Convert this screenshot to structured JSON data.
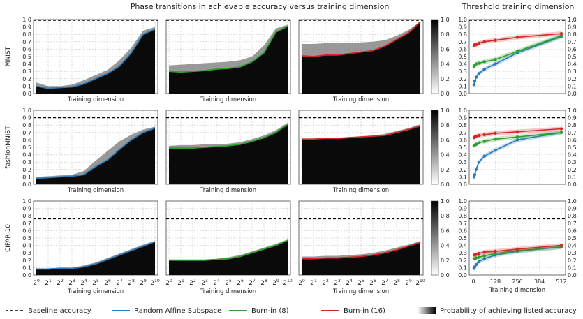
{
  "titles": {
    "left": "Phase transitions in achievable accuracy versus training dimension",
    "right": "Threshold training dimension"
  },
  "row_labels": [
    "MNIST",
    "fashionMNIST",
    "CIFAR-10"
  ],
  "xlabel": "Training dimension",
  "legend": [
    {
      "label": "Baseline accuracy",
      "kind": "dash",
      "color": "#000000"
    },
    {
      "label": "Random Affine Subspace",
      "kind": "line",
      "color": "#2b7bba"
    },
    {
      "label": "Burn-in (8)",
      "kind": "line",
      "color": "#2ca02c"
    },
    {
      "label": "Burn-in (16)",
      "kind": "line",
      "color": "#d62728"
    },
    {
      "label": "Probability of achieving listed accuracy",
      "kind": "gradient",
      "color": "#000000"
    }
  ],
  "chart_data": {
    "type": "line",
    "x_exponents": [
      0,
      1,
      2,
      3,
      4,
      5,
      6,
      7,
      8,
      9,
      10
    ],
    "x_tick_labels": [
      "2",
      "2",
      "2",
      "2",
      "2",
      "2",
      "2",
      "2",
      "2",
      "2",
      "2"
    ],
    "x_tick_sup": [
      "0",
      "1",
      "2",
      "3",
      "4",
      "5",
      "6",
      "7",
      "8",
      "9",
      "10"
    ],
    "y_ticks": [
      "0.0",
      "0.1",
      "0.2",
      "0.3",
      "0.4",
      "0.5",
      "0.6",
      "0.7",
      "0.8",
      "0.9",
      "1.0"
    ],
    "colorbar_ticks": [
      "0.0",
      "0.2",
      "0.4",
      "0.6",
      "0.8",
      "1.0"
    ],
    "right_x_ticks": [
      "0",
      "128",
      "256",
      "384",
      "512"
    ],
    "ylim": [
      0,
      1
    ],
    "rows": [
      {
        "dataset": "MNIST",
        "baseline": 0.99,
        "panels": [
          {
            "method": "Random Affine Subspace",
            "color": "#2b7bba",
            "curve": [
              0.1,
              0.07,
              0.08,
              0.09,
              0.13,
              0.2,
              0.27,
              0.37,
              0.55,
              0.8,
              0.87
            ],
            "band": [
              0.15,
              0.1,
              0.1,
              0.12,
              0.18,
              0.25,
              0.32,
              0.45,
              0.62,
              0.85,
              0.9
            ]
          },
          {
            "method": "Burn-in (8)",
            "color": "#2ca02c",
            "curve": [
              0.3,
              0.29,
              0.3,
              0.31,
              0.33,
              0.34,
              0.36,
              0.43,
              0.55,
              0.83,
              0.91
            ],
            "band": [
              0.38,
              0.39,
              0.4,
              0.41,
              0.42,
              0.43,
              0.45,
              0.5,
              0.65,
              0.88,
              0.93
            ]
          },
          {
            "method": "Burn-in (16)",
            "color": "#d62728",
            "curve": [
              0.51,
              0.5,
              0.52,
              0.52,
              0.54,
              0.56,
              0.58,
              0.64,
              0.73,
              0.82,
              0.97
            ],
            "band": [
              0.67,
              0.67,
              0.68,
              0.68,
              0.68,
              0.69,
              0.7,
              0.72,
              0.78,
              0.86,
              0.97
            ]
          }
        ],
        "threshold": [
          {
            "name": "Random Affine Subspace",
            "color": "#2b7bba",
            "x": [
              4,
              8,
              16,
              32,
              64,
              128,
              256,
              512
            ],
            "y": [
              0.12,
              0.17,
              0.22,
              0.27,
              0.33,
              0.4,
              0.55,
              0.77
            ]
          },
          {
            "name": "Burn-in (8)",
            "color": "#2ca02c",
            "x": [
              4,
              8,
              16,
              32,
              64,
              128,
              256,
              512
            ],
            "y": [
              0.36,
              0.38,
              0.4,
              0.41,
              0.43,
              0.46,
              0.57,
              0.78
            ]
          },
          {
            "name": "Burn-in (16)",
            "color": "#d62728",
            "x": [
              4,
              8,
              16,
              32,
              64,
              128,
              256,
              512
            ],
            "y": [
              0.65,
              0.66,
              0.66,
              0.68,
              0.7,
              0.72,
              0.76,
              0.81
            ]
          }
        ]
      },
      {
        "dataset": "fashionMNIST",
        "baseline": 0.9,
        "panels": [
          {
            "method": "Random Affine Subspace",
            "color": "#2b7bba",
            "curve": [
              0.08,
              0.09,
              0.1,
              0.11,
              0.13,
              0.24,
              0.33,
              0.47,
              0.6,
              0.7,
              0.76
            ],
            "band": [
              0.1,
              0.11,
              0.12,
              0.13,
              0.18,
              0.32,
              0.45,
              0.58,
              0.67,
              0.74,
              0.78
            ]
          },
          {
            "method": "Burn-in (8)",
            "color": "#2ca02c",
            "curve": [
              0.49,
              0.49,
              0.49,
              0.5,
              0.51,
              0.52,
              0.54,
              0.58,
              0.63,
              0.7,
              0.81
            ],
            "band": [
              0.52,
              0.53,
              0.53,
              0.54,
              0.54,
              0.55,
              0.57,
              0.61,
              0.66,
              0.73,
              0.83
            ]
          },
          {
            "method": "Burn-in (16)",
            "color": "#d62728",
            "curve": [
              0.61,
              0.61,
              0.62,
              0.62,
              0.63,
              0.64,
              0.65,
              0.66,
              0.7,
              0.74,
              0.79
            ],
            "band": [
              0.62,
              0.62,
              0.63,
              0.63,
              0.64,
              0.65,
              0.66,
              0.68,
              0.72,
              0.76,
              0.81
            ]
          }
        ],
        "threshold": [
          {
            "name": "Random Affine Subspace",
            "color": "#2b7bba",
            "x": [
              4,
              8,
              16,
              32,
              64,
              128,
              256,
              512
            ],
            "y": [
              0.1,
              0.13,
              0.2,
              0.3,
              0.38,
              0.46,
              0.6,
              0.7
            ]
          },
          {
            "name": "Burn-in (8)",
            "color": "#2ca02c",
            "x": [
              4,
              8,
              16,
              32,
              64,
              128,
              256,
              512
            ],
            "y": [
              0.52,
              0.53,
              0.54,
              0.56,
              0.58,
              0.61,
              0.64,
              0.7
            ]
          },
          {
            "name": "Burn-in (16)",
            "color": "#d62728",
            "x": [
              4,
              8,
              16,
              32,
              64,
              128,
              256,
              512
            ],
            "y": [
              0.63,
              0.64,
              0.65,
              0.66,
              0.67,
              0.69,
              0.71,
              0.75
            ]
          }
        ]
      },
      {
        "dataset": "CIFAR-10",
        "baseline": 0.76,
        "panels": [
          {
            "method": "Random Affine Subspace",
            "color": "#2b7bba",
            "curve": [
              0.08,
              0.08,
              0.09,
              0.09,
              0.11,
              0.15,
              0.21,
              0.27,
              0.33,
              0.39,
              0.45
            ],
            "band": [
              0.09,
              0.09,
              0.1,
              0.1,
              0.13,
              0.17,
              0.23,
              0.29,
              0.35,
              0.41,
              0.46
            ]
          },
          {
            "method": "Burn-in (8)",
            "color": "#2ca02c",
            "curve": [
              0.2,
              0.2,
              0.2,
              0.2,
              0.21,
              0.22,
              0.25,
              0.3,
              0.35,
              0.4,
              0.47
            ],
            "band": [
              0.21,
              0.21,
              0.21,
              0.21,
              0.22,
              0.24,
              0.27,
              0.32,
              0.37,
              0.42,
              0.48
            ]
          },
          {
            "method": "Burn-in (16)",
            "color": "#d62728",
            "curve": [
              0.22,
              0.22,
              0.23,
              0.23,
              0.24,
              0.25,
              0.27,
              0.3,
              0.34,
              0.39,
              0.44
            ],
            "band": [
              0.25,
              0.25,
              0.26,
              0.26,
              0.27,
              0.28,
              0.3,
              0.33,
              0.37,
              0.41,
              0.46
            ]
          }
        ],
        "threshold": [
          {
            "name": "Random Affine Subspace",
            "color": "#2b7bba",
            "x": [
              4,
              8,
              16,
              32,
              64,
              128,
              256,
              512
            ],
            "y": [
              0.09,
              0.11,
              0.14,
              0.18,
              0.22,
              0.27,
              0.32,
              0.38
            ]
          },
          {
            "name": "Burn-in (8)",
            "color": "#2ca02c",
            "x": [
              4,
              8,
              16,
              32,
              64,
              128,
              256,
              512
            ],
            "y": [
              0.22,
              0.22,
              0.23,
              0.24,
              0.26,
              0.29,
              0.33,
              0.38
            ]
          },
          {
            "name": "Burn-in (16)",
            "color": "#d62728",
            "x": [
              4,
              8,
              16,
              32,
              64,
              128,
              256,
              512
            ],
            "y": [
              0.27,
              0.27,
              0.28,
              0.29,
              0.31,
              0.32,
              0.35,
              0.4
            ]
          }
        ]
      }
    ]
  }
}
